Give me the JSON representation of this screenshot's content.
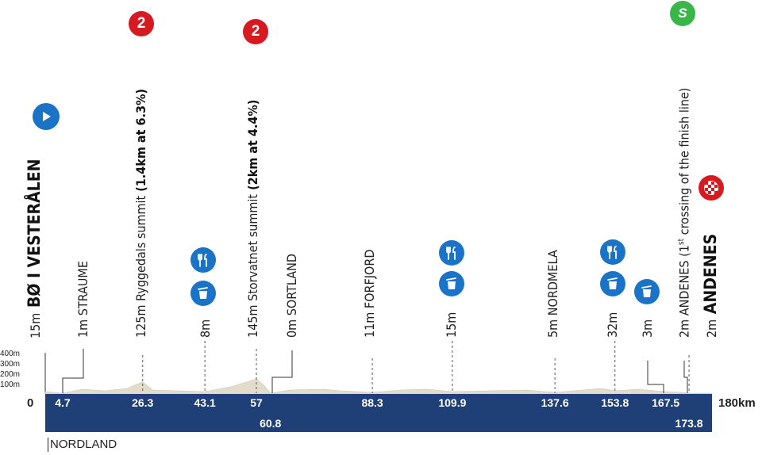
{
  "profile": {
    "total_km": 180,
    "total_label": "180km",
    "start_label": "0",
    "region": "NORDLAND",
    "altitude_ticks": [
      "400m",
      "300m",
      "200m",
      "100m"
    ],
    "km_markers_top": [
      "4.7",
      "26.3",
      "43.1",
      "57",
      "88.3",
      "109.9",
      "137.6",
      "153.8",
      "167.5"
    ],
    "km_markers_bottom": [
      "60.8",
      "173.8"
    ],
    "colors": {
      "bar": "#1f3f77",
      "sprint": "#3ab54a",
      "climb": "#d71920",
      "start": "#1a73c7",
      "feed": "#1a73c7",
      "terrain": "#e3dccb"
    }
  },
  "waypoints": [
    {
      "km": 0,
      "alt_text": "15m",
      "name": "BØ I VESTERÅLEN",
      "big": true,
      "icon": "start-arrow-icon"
    },
    {
      "km": 4.7,
      "alt_text": "1m",
      "name": "STRAUME"
    },
    {
      "km": 26.3,
      "alt_text": "125m",
      "name": "Ryggedals summit",
      "detail": "(1.4km at 6.3%)",
      "icon": "climb-cat2-icon",
      "badge": "2"
    },
    {
      "km": 43.1,
      "alt_text": "8m",
      "name": "",
      "icons": [
        "feed-zone-icon",
        "waste-zone-icon"
      ]
    },
    {
      "km": 57,
      "alt_text": "145m",
      "name": "Storvatnet summit",
      "detail": "(2km at 4.4%)",
      "icon": "climb-cat2-icon",
      "badge": "2"
    },
    {
      "km": 60.8,
      "alt_text": "0m",
      "name": "SORTLAND"
    },
    {
      "km": 88.3,
      "alt_text": "11m",
      "name": "FORFJORD"
    },
    {
      "km": 109.9,
      "alt_text": "15m",
      "name": "",
      "icons": [
        "feed-zone-icon",
        "waste-zone-icon"
      ]
    },
    {
      "km": 137.6,
      "alt_text": "5m",
      "name": "NORDMELA"
    },
    {
      "km": 153.8,
      "alt_text": "32m",
      "name": "",
      "icons": [
        "feed-zone-icon",
        "waste-zone-icon"
      ]
    },
    {
      "km": 167.5,
      "alt_text": "3m",
      "name": "",
      "icons": [
        "waste-zone-icon"
      ]
    },
    {
      "km": 173.8,
      "alt_text": "2m",
      "name": "ANDENES",
      "detail_pre": "(1",
      "detail_sup": "st",
      "detail_post": " crossing of the finish line)",
      "icon": "sprint-icon",
      "badge": "S"
    },
    {
      "km": 180,
      "alt_text": "2m",
      "name": "ANDENES",
      "big": true,
      "icon": "finish-flag-icon"
    }
  ]
}
